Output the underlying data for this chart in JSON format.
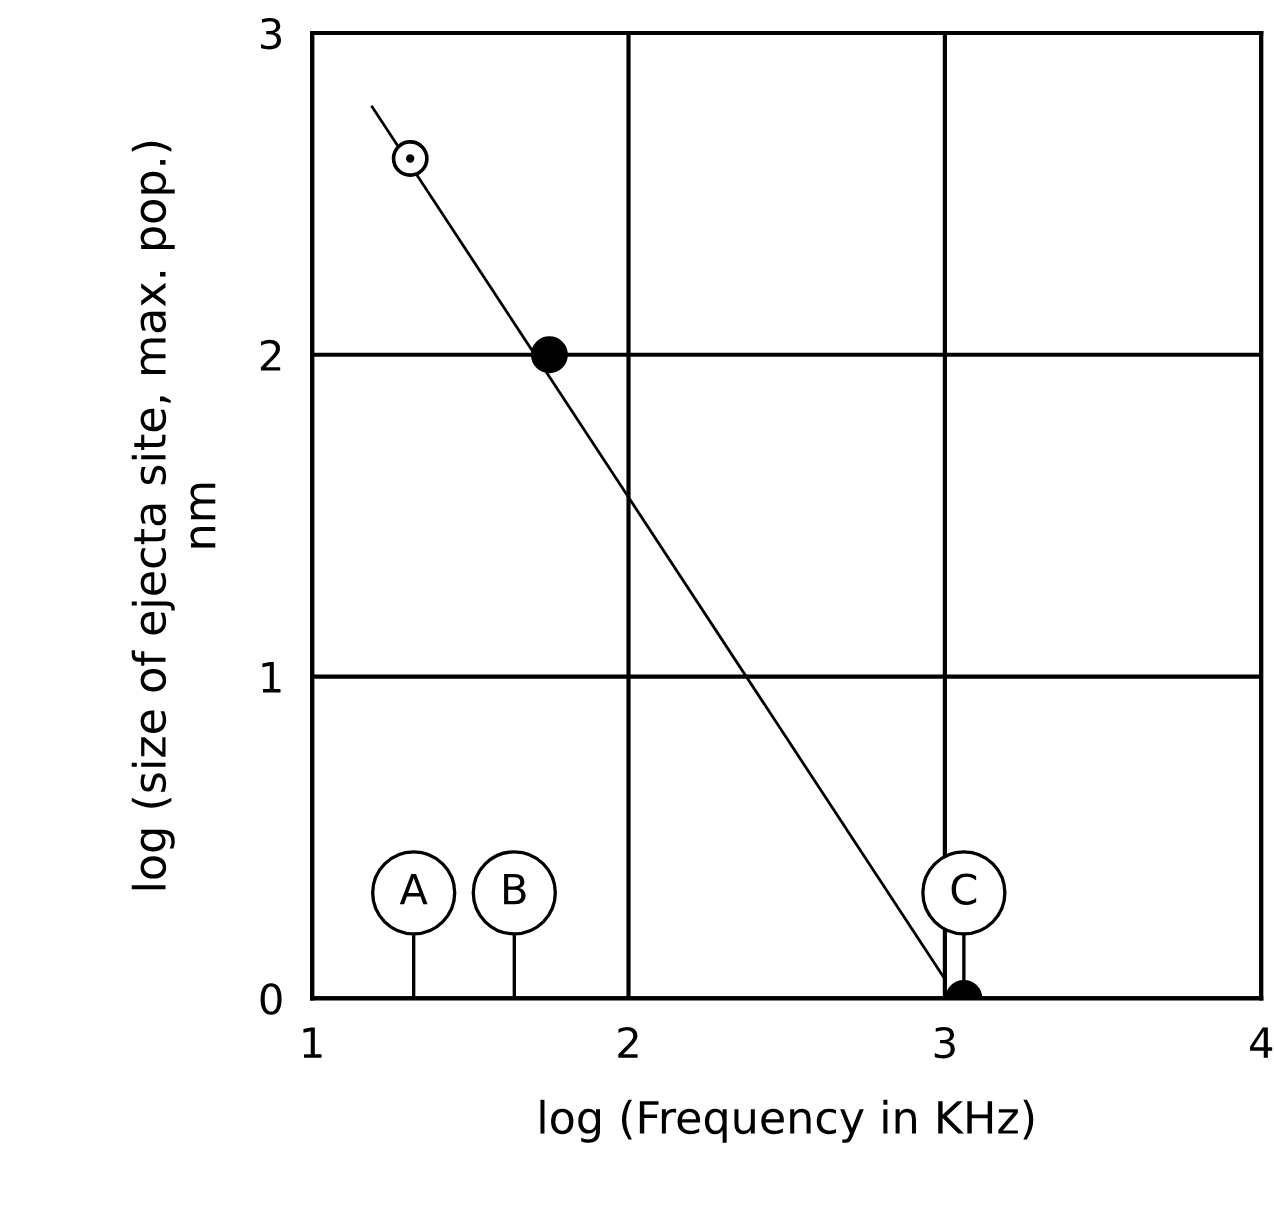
{
  "chart_data": {
    "type": "scatter",
    "xlabel": "log (Frequency in KHz)",
    "ylabel": "log (size of ejecta site, max. pop.)\nnm",
    "xlim": [
      1,
      4
    ],
    "ylim": [
      0,
      3
    ],
    "xticks": [
      1,
      2,
      3,
      4
    ],
    "yticks": [
      0,
      1,
      2,
      3
    ],
    "grid": true,
    "series": [
      {
        "type": "line",
        "color": "#000000",
        "x": [
          1.19,
          3.0
        ],
        "values": [
          2.77,
          0.06
        ]
      },
      {
        "color": "#ffffff",
        "x": [
          1.31
        ],
        "values": [
          2.61
        ],
        "marker": "circle"
      },
      {
        "color": "#000000",
        "x": [
          1.75,
          3.06
        ],
        "values": [
          2.0,
          0.0
        ],
        "marker": "circle"
      }
    ],
    "annotations": [
      "A",
      "B",
      {
        "text": "C",
        "x": 3.06,
        "y": 0
      }
    ]
  }
}
